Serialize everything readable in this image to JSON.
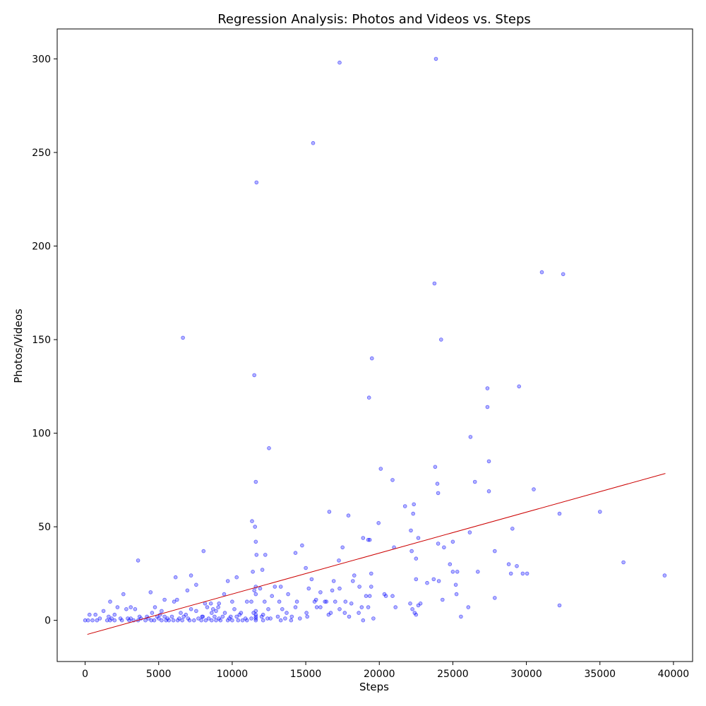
{
  "chart_data": {
    "type": "scatter",
    "title": "Regression Analysis: Photos and Videos vs. Steps",
    "xlabel": "Steps",
    "ylabel": "Photos/Videos",
    "xlim": [
      -1900,
      41300
    ],
    "ylim": [
      -22,
      316
    ],
    "xticks": [
      0,
      5000,
      10000,
      15000,
      20000,
      25000,
      30000,
      35000,
      40000
    ],
    "yticks": [
      0,
      50,
      100,
      150,
      200,
      250,
      300
    ],
    "grid": false,
    "point_color": "#0000ff",
    "line_color": "#cc0000",
    "regression_line": {
      "x": [
        150,
        39450
      ],
      "y": [
        -7.5,
        78.5
      ]
    },
    "points": [
      [
        23850,
        300
      ],
      [
        17300,
        298
      ],
      [
        15500,
        255
      ],
      [
        11650,
        234
      ],
      [
        31050,
        186
      ],
      [
        32500,
        185
      ],
      [
        23750,
        180
      ],
      [
        6650,
        151
      ],
      [
        24200,
        150
      ],
      [
        19500,
        140
      ],
      [
        11500,
        131
      ],
      [
        29500,
        125
      ],
      [
        27350,
        124
      ],
      [
        19300,
        119
      ],
      [
        27350,
        114
      ],
      [
        12500,
        92
      ],
      [
        26200,
        98
      ],
      [
        23800,
        82
      ],
      [
        20100,
        81
      ],
      [
        20900,
        75
      ],
      [
        11600,
        74
      ],
      [
        26500,
        74
      ],
      [
        23950,
        73
      ],
      [
        27450,
        85
      ],
      [
        30500,
        70
      ],
      [
        27450,
        69
      ],
      [
        24000,
        68
      ],
      [
        21750,
        61
      ],
      [
        22350,
        62
      ],
      [
        22300,
        57
      ],
      [
        32250,
        57
      ],
      [
        35000,
        58
      ],
      [
        16600,
        58
      ],
      [
        17900,
        56
      ],
      [
        11350,
        53
      ],
      [
        11550,
        50
      ],
      [
        19950,
        52
      ],
      [
        22150,
        48
      ],
      [
        26150,
        47
      ],
      [
        29050,
        49
      ],
      [
        18900,
        44
      ],
      [
        19250,
        43
      ],
      [
        19350,
        43
      ],
      [
        22650,
        44
      ],
      [
        24000,
        41
      ],
      [
        25000,
        42
      ],
      [
        11600,
        42
      ],
      [
        24400,
        39
      ],
      [
        17500,
        39
      ],
      [
        21000,
        39
      ],
      [
        14750,
        40
      ],
      [
        3600,
        32
      ],
      [
        8050,
        37
      ],
      [
        11650,
        35
      ],
      [
        12250,
        35
      ],
      [
        14300,
        36
      ],
      [
        22200,
        37
      ],
      [
        27850,
        37
      ],
      [
        36600,
        31
      ],
      [
        17250,
        32
      ],
      [
        22500,
        33
      ],
      [
        24800,
        30
      ],
      [
        28800,
        30
      ],
      [
        29350,
        29
      ],
      [
        25000,
        26
      ],
      [
        25300,
        26
      ],
      [
        26700,
        26
      ],
      [
        28950,
        25
      ],
      [
        29750,
        25
      ],
      [
        30050,
        25
      ],
      [
        39400,
        24
      ],
      [
        19450,
        25
      ],
      [
        18300,
        24
      ],
      [
        15000,
        28
      ],
      [
        11400,
        26
      ],
      [
        12050,
        27
      ],
      [
        10300,
        23
      ],
      [
        7200,
        24
      ],
      [
        6150,
        23
      ],
      [
        9700,
        21
      ],
      [
        15400,
        22
      ],
      [
        16900,
        21
      ],
      [
        18200,
        21
      ],
      [
        22500,
        22
      ],
      [
        23250,
        20
      ],
      [
        23700,
        22
      ],
      [
        24050,
        21
      ],
      [
        25200,
        19
      ],
      [
        7550,
        19
      ],
      [
        11600,
        18
      ],
      [
        12900,
        18
      ],
      [
        13300,
        18
      ],
      [
        17300,
        17
      ],
      [
        19450,
        18
      ],
      [
        18650,
        18
      ],
      [
        15200,
        17
      ],
      [
        11500,
        16
      ],
      [
        11900,
        17
      ],
      [
        6950,
        16
      ],
      [
        4450,
        15
      ],
      [
        2600,
        14
      ],
      [
        9450,
        14
      ],
      [
        11600,
        14
      ],
      [
        12700,
        13
      ],
      [
        13800,
        14
      ],
      [
        16000,
        15
      ],
      [
        16800,
        16
      ],
      [
        20350,
        14
      ],
      [
        20450,
        13
      ],
      [
        20900,
        13
      ],
      [
        25250,
        14
      ],
      [
        27850,
        12
      ],
      [
        19100,
        13
      ],
      [
        19350,
        13
      ],
      [
        1700,
        10
      ],
      [
        6050,
        10
      ],
      [
        8150,
        9
      ],
      [
        8550,
        9
      ],
      [
        9100,
        9
      ],
      [
        10000,
        10
      ],
      [
        11000,
        10
      ],
      [
        11300,
        10
      ],
      [
        12200,
        10
      ],
      [
        13200,
        10
      ],
      [
        14400,
        10
      ],
      [
        15600,
        10
      ],
      [
        15700,
        11
      ],
      [
        16300,
        10
      ],
      [
        16400,
        10
      ],
      [
        17000,
        10
      ],
      [
        17700,
        10
      ],
      [
        18100,
        9
      ],
      [
        22100,
        9
      ],
      [
        22800,
        9
      ],
      [
        24300,
        11
      ],
      [
        32250,
        8
      ],
      [
        5400,
        11
      ],
      [
        6250,
        11
      ],
      [
        4750,
        7
      ],
      [
        2200,
        7
      ],
      [
        3100,
        7
      ],
      [
        7200,
        6
      ],
      [
        8700,
        6
      ],
      [
        9050,
        7
      ],
      [
        10150,
        6
      ],
      [
        12450,
        6
      ],
      [
        13400,
        6
      ],
      [
        14300,
        7
      ],
      [
        15750,
        7
      ],
      [
        16000,
        7
      ],
      [
        17300,
        6
      ],
      [
        18800,
        7
      ],
      [
        19250,
        7
      ],
      [
        21100,
        7
      ],
      [
        22250,
        6
      ],
      [
        26050,
        7
      ],
      [
        22650,
        8
      ],
      [
        1250,
        5
      ],
      [
        2800,
        6
      ],
      [
        3400,
        6
      ],
      [
        4550,
        4
      ],
      [
        5200,
        5
      ],
      [
        6500,
        4
      ],
      [
        7550,
        5
      ],
      [
        8600,
        4
      ],
      [
        9500,
        4
      ],
      [
        10600,
        4
      ],
      [
        11450,
        4
      ],
      [
        12100,
        3
      ],
      [
        13700,
        4
      ],
      [
        15050,
        4
      ],
      [
        16700,
        4
      ],
      [
        18600,
        4
      ],
      [
        22400,
        4
      ],
      [
        22500,
        3
      ],
      [
        25550,
        2
      ],
      [
        300,
        3
      ],
      [
        700,
        3
      ],
      [
        2000,
        3
      ],
      [
        3700,
        2
      ],
      [
        6850,
        3
      ],
      [
        7950,
        2
      ],
      [
        9350,
        2
      ],
      [
        10500,
        3
      ],
      [
        11600,
        3
      ],
      [
        12600,
        1
      ],
      [
        14050,
        2
      ],
      [
        15100,
        2
      ],
      [
        16550,
        3
      ],
      [
        17650,
        4
      ],
      [
        17950,
        2
      ],
      [
        19600,
        1
      ],
      [
        0,
        0
      ],
      [
        200,
        0
      ],
      [
        500,
        0
      ],
      [
        800,
        0
      ],
      [
        1500,
        0
      ],
      [
        1700,
        0
      ],
      [
        2000,
        0
      ],
      [
        2500,
        0
      ],
      [
        3000,
        0
      ],
      [
        3300,
        0
      ],
      [
        3600,
        0
      ],
      [
        4100,
        0
      ],
      [
        4500,
        0
      ],
      [
        4700,
        0
      ],
      [
        5200,
        0
      ],
      [
        5500,
        0
      ],
      [
        5700,
        0
      ],
      [
        6000,
        0
      ],
      [
        6300,
        0
      ],
      [
        6600,
        0
      ],
      [
        7100,
        0
      ],
      [
        7400,
        0
      ],
      [
        7900,
        0
      ],
      [
        8200,
        0
      ],
      [
        8600,
        0
      ],
      [
        8900,
        0
      ],
      [
        9200,
        0
      ],
      [
        9700,
        0
      ],
      [
        10000,
        0
      ],
      [
        10400,
        0
      ],
      [
        10700,
        0
      ],
      [
        11000,
        0
      ],
      [
        11600,
        0
      ],
      [
        12100,
        0
      ],
      [
        13300,
        0
      ],
      [
        14000,
        0
      ],
      [
        18900,
        0
      ],
      [
        1000,
        1
      ],
      [
        1800,
        1
      ],
      [
        2400,
        1
      ],
      [
        3100,
        1
      ],
      [
        3800,
        1
      ],
      [
        4300,
        1
      ],
      [
        5000,
        1
      ],
      [
        5600,
        1
      ],
      [
        6400,
        1
      ],
      [
        7000,
        1
      ],
      [
        7700,
        1
      ],
      [
        8400,
        1
      ],
      [
        9100,
        1
      ],
      [
        9800,
        1
      ],
      [
        10900,
        1
      ],
      [
        11600,
        1
      ],
      [
        12400,
        1
      ],
      [
        13600,
        1
      ],
      [
        14600,
        1
      ],
      [
        4200,
        2
      ],
      [
        4900,
        2
      ],
      [
        5400,
        2
      ],
      [
        5900,
        2
      ],
      [
        6700,
        2
      ],
      [
        8000,
        2
      ],
      [
        8800,
        2
      ],
      [
        9900,
        2
      ],
      [
        10300,
        2
      ],
      [
        11600,
        2
      ],
      [
        13100,
        2
      ],
      [
        1600,
        2
      ],
      [
        2900,
        1
      ],
      [
        5100,
        3
      ],
      [
        11600,
        5
      ],
      [
        11300,
        1
      ],
      [
        12000,
        2
      ],
      [
        8300,
        7
      ],
      [
        8900,
        5
      ]
    ]
  }
}
